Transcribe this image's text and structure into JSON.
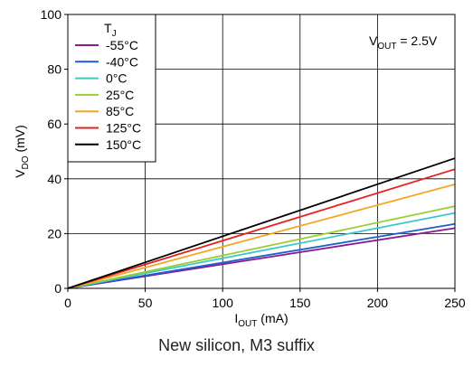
{
  "chart_data": {
    "type": "line",
    "title": "",
    "xlabel": {
      "main": "I",
      "sub": "OUT",
      "unit": " (mA)"
    },
    "ylabel": {
      "main": "V",
      "sub": "DO",
      "unit": " (mV)"
    },
    "xlim": [
      0,
      250
    ],
    "ylim": [
      0,
      100
    ],
    "xticks": [
      "0",
      "50",
      "100",
      "150",
      "200",
      "250"
    ],
    "yticks": [
      "0",
      "20",
      "40",
      "60",
      "80",
      "100"
    ],
    "grid": true,
    "legend": {
      "title_main": "T",
      "title_sub": "J",
      "placement": "top-left"
    },
    "annotation": {
      "main": "V",
      "sub": "OUT",
      "rest": " = 2.5V"
    },
    "x": [
      0,
      250
    ],
    "series": [
      {
        "name": "-55°C",
        "color": "#8b1a8b",
        "values": [
          0,
          22
        ]
      },
      {
        "name": "-40°C",
        "color": "#1f5fcf",
        "values": [
          0,
          23.5
        ]
      },
      {
        "name": "0°C",
        "color": "#3cc9c9",
        "values": [
          0,
          27.5
        ]
      },
      {
        "name": "25°C",
        "color": "#9acd32",
        "values": [
          0,
          30
        ]
      },
      {
        "name": "85°C",
        "color": "#f5a623",
        "values": [
          0,
          38
        ]
      },
      {
        "name": "125°C",
        "color": "#e8201c",
        "values": [
          0,
          43.5
        ]
      },
      {
        "name": "150°C",
        "color": "#000000",
        "values": [
          0,
          47.5
        ]
      }
    ]
  },
  "caption": "New silicon, M3 suffix"
}
